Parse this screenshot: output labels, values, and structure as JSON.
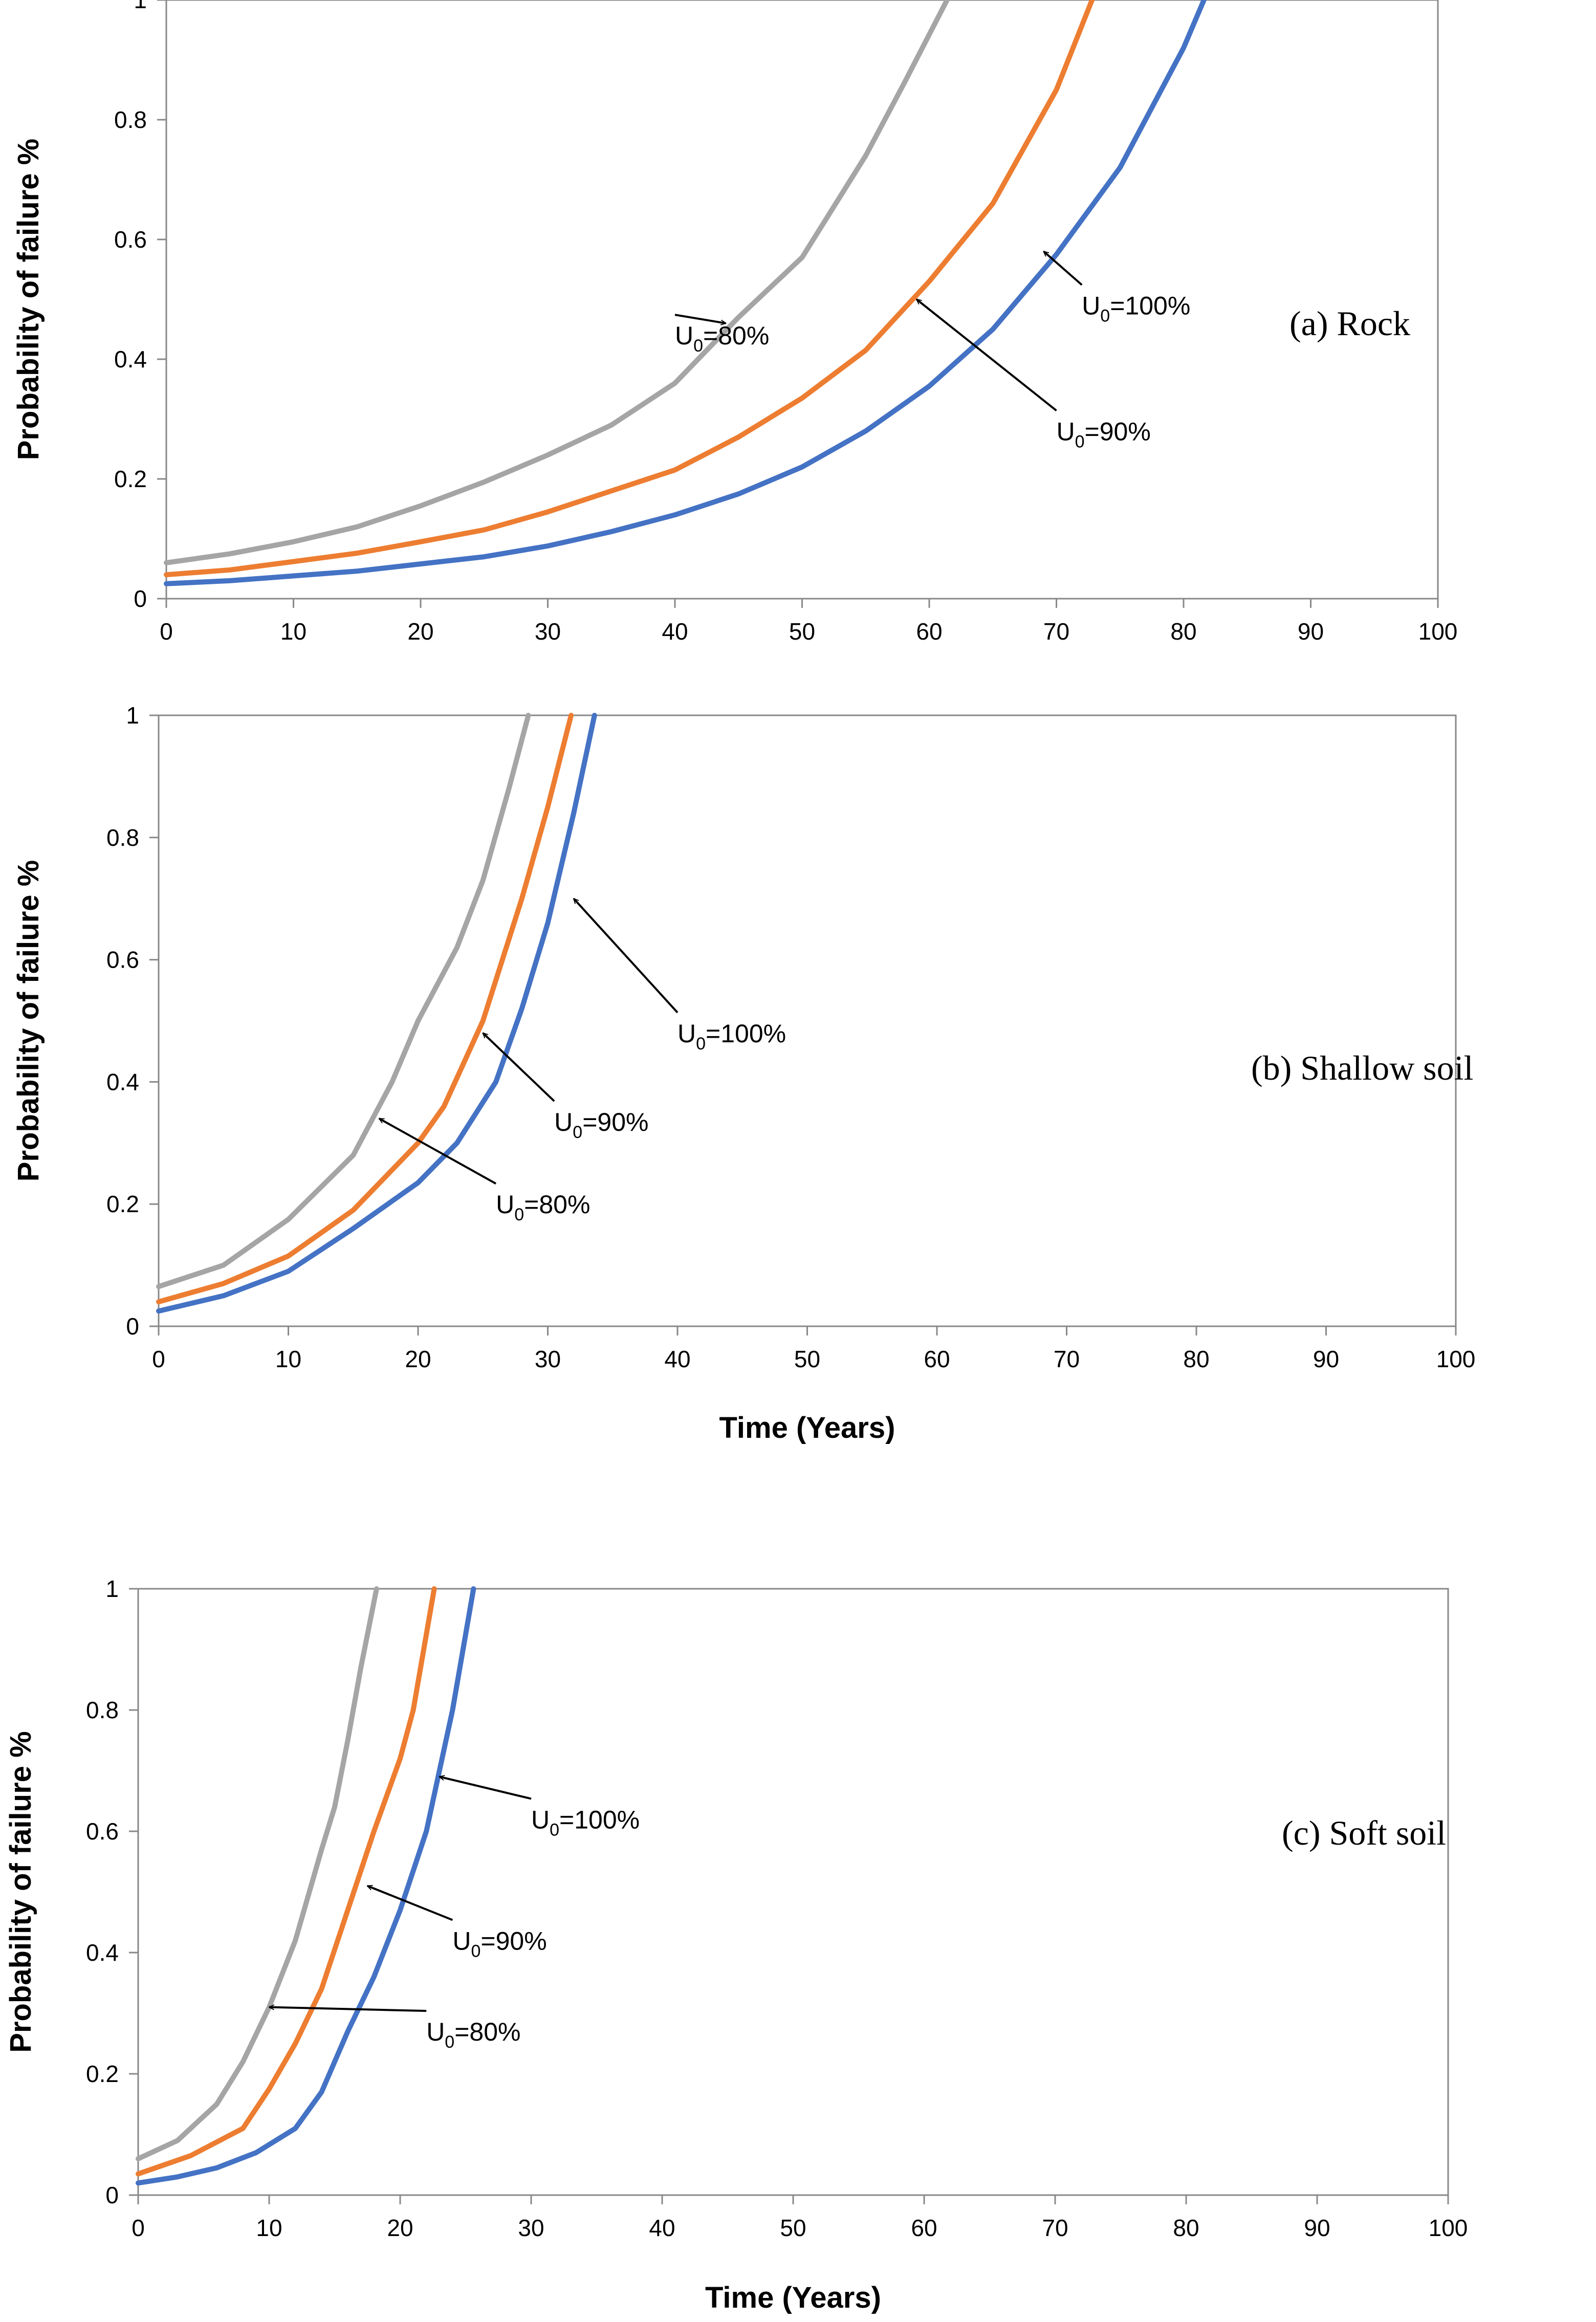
{
  "chart_data": [
    {
      "type": "line",
      "panel": "(a)",
      "title": "Rock",
      "xlabel": "",
      "ylabel": "Probability of failure %",
      "xlim": [
        0,
        100
      ],
      "ylim": [
        0,
        1
      ],
      "xticks": [
        0,
        10,
        20,
        30,
        40,
        50,
        60,
        70,
        80,
        90,
        100
      ],
      "yticks": [
        0,
        0.2,
        0.4,
        0.6,
        0.8,
        1
      ],
      "series": [
        {
          "name": "U0=80%",
          "color": "#a5a5a5",
          "x": [
            0,
            5,
            10,
            15,
            20,
            25,
            30,
            35,
            40,
            45,
            50,
            55,
            58,
            61.4
          ],
          "y": [
            0.06,
            0.075,
            0.095,
            0.12,
            0.155,
            0.195,
            0.24,
            0.29,
            0.36,
            0.47,
            0.57,
            0.74,
            0.86,
            1.0
          ]
        },
        {
          "name": "U0=90%",
          "color": "#ed7d31",
          "x": [
            0,
            5,
            10,
            15,
            20,
            25,
            30,
            35,
            40,
            45,
            50,
            55,
            60,
            65,
            70,
            72.8
          ],
          "y": [
            0.04,
            0.048,
            0.062,
            0.076,
            0.095,
            0.115,
            0.145,
            0.18,
            0.215,
            0.27,
            0.335,
            0.415,
            0.53,
            0.66,
            0.85,
            1.0
          ]
        },
        {
          "name": "U0=100%",
          "color": "#4472c4",
          "x": [
            0,
            5,
            10,
            15,
            20,
            25,
            30,
            35,
            40,
            45,
            50,
            55,
            60,
            65,
            70,
            75,
            80,
            81.6
          ],
          "y": [
            0.025,
            0.03,
            0.038,
            0.046,
            0.058,
            0.07,
            0.088,
            0.112,
            0.14,
            0.175,
            0.22,
            0.28,
            0.355,
            0.45,
            0.575,
            0.72,
            0.92,
            1.0
          ]
        }
      ],
      "annotations": [
        {
          "text": "U",
          "sub": "0",
          "rest": "=80%",
          "x": 40,
          "y": 0.44,
          "target_x": 44,
          "target_y": 0.46
        },
        {
          "text": "U",
          "sub": "0",
          "rest": "=90%",
          "x": 70,
          "y": 0.28,
          "target_x": 59,
          "target_y": 0.5
        },
        {
          "text": "U",
          "sub": "0",
          "rest": "=100%",
          "x": 72,
          "y": 0.49,
          "target_x": 69,
          "target_y": 0.58
        }
      ],
      "panel_label": "(a)   Rock"
    },
    {
      "type": "line",
      "panel": "(b)",
      "title": "Shallow soil",
      "xlabel": "Time (Years)",
      "ylabel": "Probability of failure %",
      "xlim": [
        0,
        100
      ],
      "ylim": [
        0,
        1
      ],
      "xticks": [
        0,
        10,
        20,
        30,
        40,
        50,
        60,
        70,
        80,
        90,
        100
      ],
      "yticks": [
        0,
        0.2,
        0.4,
        0.6,
        0.8,
        1
      ],
      "series": [
        {
          "name": "U0=80%",
          "color": "#a5a5a5",
          "x": [
            0,
            5,
            10,
            15,
            18,
            20,
            23,
            25,
            27,
            28.5
          ],
          "y": [
            0.065,
            0.1,
            0.175,
            0.28,
            0.4,
            0.5,
            0.62,
            0.73,
            0.88,
            1.0
          ]
        },
        {
          "name": "U0=90%",
          "color": "#ed7d31",
          "x": [
            0,
            5,
            10,
            15,
            20,
            22,
            25,
            28,
            30,
            31.8
          ],
          "y": [
            0.04,
            0.07,
            0.115,
            0.19,
            0.3,
            0.36,
            0.5,
            0.7,
            0.85,
            1.0
          ]
        },
        {
          "name": "U0=100%",
          "color": "#4472c4",
          "x": [
            0,
            5,
            10,
            15,
            20,
            23,
            26,
            28,
            30,
            32,
            33.6
          ],
          "y": [
            0.025,
            0.05,
            0.09,
            0.16,
            0.235,
            0.3,
            0.4,
            0.52,
            0.66,
            0.84,
            1.0
          ]
        }
      ],
      "annotations": [
        {
          "text": "U",
          "sub": "0",
          "rest": "=80%",
          "x": 26,
          "y": 0.2,
          "target_x": 17,
          "target_y": 0.34
        },
        {
          "text": "U",
          "sub": "0",
          "rest": "=90%",
          "x": 30.5,
          "y": 0.335,
          "target_x": 25,
          "target_y": 0.48
        },
        {
          "text": "U",
          "sub": "0",
          "rest": "=100%",
          "x": 40,
          "y": 0.48,
          "target_x": 32,
          "target_y": 0.7
        }
      ],
      "panel_label": "(b)   Shallow soil"
    },
    {
      "type": "line",
      "panel": "(c)",
      "title": "Soft soil",
      "xlabel": "Time (Years)",
      "ylabel": "Probability of failure %",
      "xlim": [
        0,
        100
      ],
      "ylim": [
        0,
        1
      ],
      "xticks": [
        0,
        10,
        20,
        30,
        40,
        50,
        60,
        70,
        80,
        90,
        100
      ],
      "yticks": [
        0,
        0.2,
        0.4,
        0.6,
        0.8,
        1
      ],
      "series": [
        {
          "name": "U0=80%",
          "color": "#a5a5a5",
          "x": [
            0,
            3,
            6,
            8,
            10,
            12,
            14,
            15,
            16,
            17,
            18.2
          ],
          "y": [
            0.06,
            0.09,
            0.15,
            0.22,
            0.31,
            0.42,
            0.57,
            0.64,
            0.75,
            0.87,
            1.0
          ]
        },
        {
          "name": "U0=90%",
          "color": "#ed7d31",
          "x": [
            0,
            4,
            8,
            10,
            12,
            14,
            16,
            18,
            20,
            21,
            22.6
          ],
          "y": [
            0.035,
            0.065,
            0.11,
            0.175,
            0.25,
            0.34,
            0.47,
            0.6,
            0.72,
            0.8,
            1.0
          ]
        },
        {
          "name": "U0=100%",
          "color": "#4472c4",
          "x": [
            0,
            3,
            6,
            9,
            12,
            14,
            16,
            18,
            20,
            22,
            24,
            25.6
          ],
          "y": [
            0.02,
            0.03,
            0.045,
            0.07,
            0.11,
            0.17,
            0.27,
            0.36,
            0.47,
            0.6,
            0.8,
            1.0
          ]
        }
      ],
      "annotations": [
        {
          "text": "U",
          "sub": "0",
          "rest": "=80%",
          "x": 22,
          "y": 0.27,
          "target_x": 10,
          "target_y": 0.31
        },
        {
          "text": "U",
          "sub": "0",
          "rest": "=90%",
          "x": 24,
          "y": 0.42,
          "target_x": 17.5,
          "target_y": 0.51
        },
        {
          "text": "U",
          "sub": "0",
          "rest": "=100%",
          "x": 30,
          "y": 0.62,
          "target_x": 23,
          "target_y": 0.69
        }
      ],
      "panel_label": "(c)   Soft soil"
    }
  ]
}
